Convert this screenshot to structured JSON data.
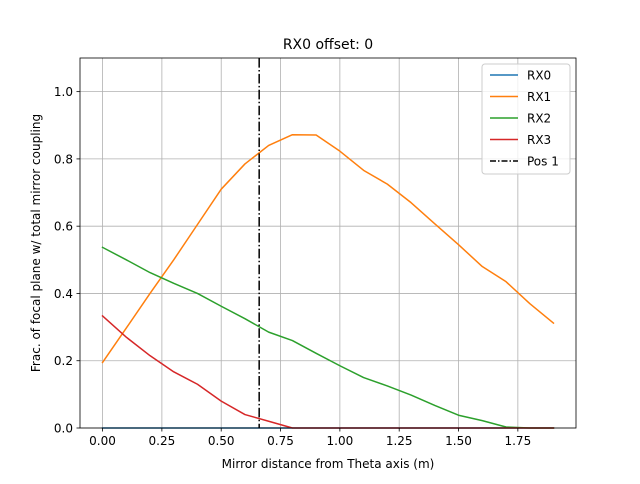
{
  "chart_data": {
    "type": "line",
    "title": "RX0 offset: 0",
    "xlabel": "Mirror distance from Theta axis (m)",
    "ylabel": "Frac. of focal plane w/ total mirror coupling",
    "xlim": [
      -0.095,
      1.995
    ],
    "ylim": [
      0.0,
      1.1
    ],
    "xticks": [
      0.0,
      0.25,
      0.5,
      0.75,
      1.0,
      1.25,
      1.5,
      1.75
    ],
    "xtick_labels": [
      "0.00",
      "0.25",
      "0.50",
      "0.75",
      "1.00",
      "1.25",
      "1.50",
      "1.75"
    ],
    "yticks": [
      0.0,
      0.2,
      0.4,
      0.6,
      0.8,
      1.0
    ],
    "ytick_labels": [
      "0.0",
      "0.2",
      "0.4",
      "0.6",
      "0.8",
      "1.0"
    ],
    "grid": true,
    "legend_position": "top-right",
    "x": [
      0.0,
      0.1,
      0.2,
      0.3,
      0.4,
      0.5,
      0.6,
      0.7,
      0.8,
      0.9,
      1.0,
      1.1,
      1.2,
      1.3,
      1.4,
      1.5,
      1.6,
      1.7,
      1.8,
      1.9
    ],
    "series": [
      {
        "name": "RX0",
        "color": "#1f77b4",
        "values": [
          0,
          0,
          0,
          0,
          0,
          0,
          0,
          0,
          0,
          0,
          0,
          0,
          0,
          0,
          0,
          0,
          0,
          0,
          0,
          0
        ]
      },
      {
        "name": "RX1",
        "color": "#ff7f0e",
        "values": [
          0.195,
          0.297,
          0.4,
          0.5,
          0.605,
          0.71,
          0.785,
          0.84,
          0.872,
          0.871,
          0.823,
          0.766,
          0.725,
          0.67,
          0.607,
          0.545,
          0.48,
          0.435,
          0.37,
          0.312
        ]
      },
      {
        "name": "RX2",
        "color": "#2ca02c",
        "values": [
          0.537,
          0.5,
          0.462,
          0.43,
          0.4,
          0.362,
          0.325,
          0.285,
          0.26,
          0.222,
          0.185,
          0.15,
          0.125,
          0.098,
          0.067,
          0.038,
          0.022,
          0.003,
          0.0,
          0.0
        ]
      },
      {
        "name": "RX3",
        "color": "#d62728",
        "values": [
          0.333,
          0.27,
          0.215,
          0.167,
          0.13,
          0.08,
          0.04,
          0.02,
          0.0,
          0.0,
          0.0,
          0.0,
          0.0,
          0.0,
          0.0,
          0.0,
          0.0,
          0.0,
          0.0,
          0.0
        ]
      }
    ],
    "vlines": [
      {
        "name": "Pos 1",
        "x": 0.66,
        "color": "#000000",
        "style": "dashdot"
      }
    ]
  }
}
